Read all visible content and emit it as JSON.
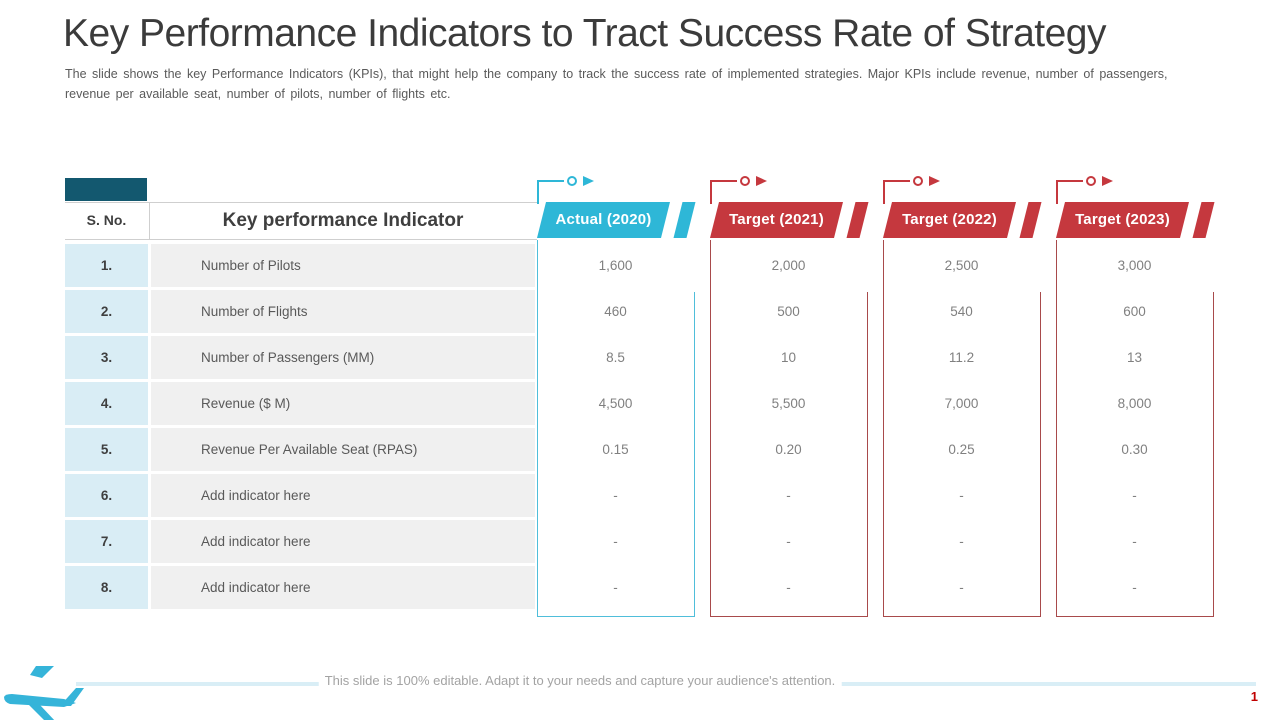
{
  "slide": {
    "title": "Key Performance Indicators to Tract Success Rate of Strategy",
    "subtitle_line1": "The slide shows the key Performance Indicators (KPIs), that might help the company to track the success rate of implemented strategies. Major KPIs include revenue, number of passengers,",
    "subtitle_line2": "revenue per available seat, number of pilots, number of flights etc.",
    "footer_note": "This slide is 100% editable. Adapt it to your needs and capture your audience's attention.",
    "page_number": "1",
    "logo_icon": "airplane"
  },
  "colors": {
    "accent_cyan": "#2eb7d7",
    "accent_red": "#c5383e",
    "box_border_cyan": "#4fbeda",
    "box_border_red": "#a84a4b",
    "dark_teal": "#13586f",
    "sno_cell_bg": "#d9edf5",
    "indicator_cell_bg": "#f0f0f0",
    "page_number_red": "#c00000",
    "logo_teal": "#35b4d9"
  },
  "table": {
    "sno_header": "S. No.",
    "kpi_header": "Key performance Indicator",
    "columns": [
      {
        "id": "actual-2020",
        "label": "Actual (2020)",
        "accent": "#2eb7d7",
        "border": "#4fbeda"
      },
      {
        "id": "target-2021",
        "label": "Target (2021)",
        "accent": "#c5383e",
        "border": "#a84a4b"
      },
      {
        "id": "target-2022",
        "label": "Target (2022)",
        "accent": "#c5383e",
        "border": "#a84a4b"
      },
      {
        "id": "target-2023",
        "label": "Target (2023)",
        "accent": "#c5383e",
        "border": "#a84a4b"
      }
    ],
    "rows": [
      {
        "sno": "1.",
        "indicator": "Number of Pilots",
        "placeholder": false,
        "values": [
          "1,600",
          "2,000",
          "2,500",
          "3,000"
        ]
      },
      {
        "sno": "2.",
        "indicator": "Number of Flights",
        "placeholder": false,
        "values": [
          "460",
          "500",
          "540",
          "600"
        ]
      },
      {
        "sno": "3.",
        "indicator": "Number of Passengers (MM)",
        "placeholder": false,
        "values": [
          "8.5",
          "10",
          "11.2",
          "13"
        ]
      },
      {
        "sno": "4.",
        "indicator": "Revenue ($ M)",
        "placeholder": false,
        "values": [
          "4,500",
          "5,500",
          "7,000",
          "8,000"
        ]
      },
      {
        "sno": "5.",
        "indicator": "Revenue Per Available Seat (RPAS)",
        "placeholder": false,
        "values": [
          "0.15",
          "0.20",
          "0.25",
          "0.30"
        ]
      },
      {
        "sno": "6.",
        "indicator": "Add indicator here",
        "placeholder": true,
        "values": [
          "-",
          "-",
          "-",
          "-"
        ]
      },
      {
        "sno": "7.",
        "indicator": "Add indicator here",
        "placeholder": true,
        "values": [
          "-",
          "-",
          "-",
          "-"
        ]
      },
      {
        "sno": "8.",
        "indicator": "Add indicator here",
        "placeholder": true,
        "values": [
          "-",
          "-",
          "-",
          "-"
        ]
      }
    ]
  }
}
